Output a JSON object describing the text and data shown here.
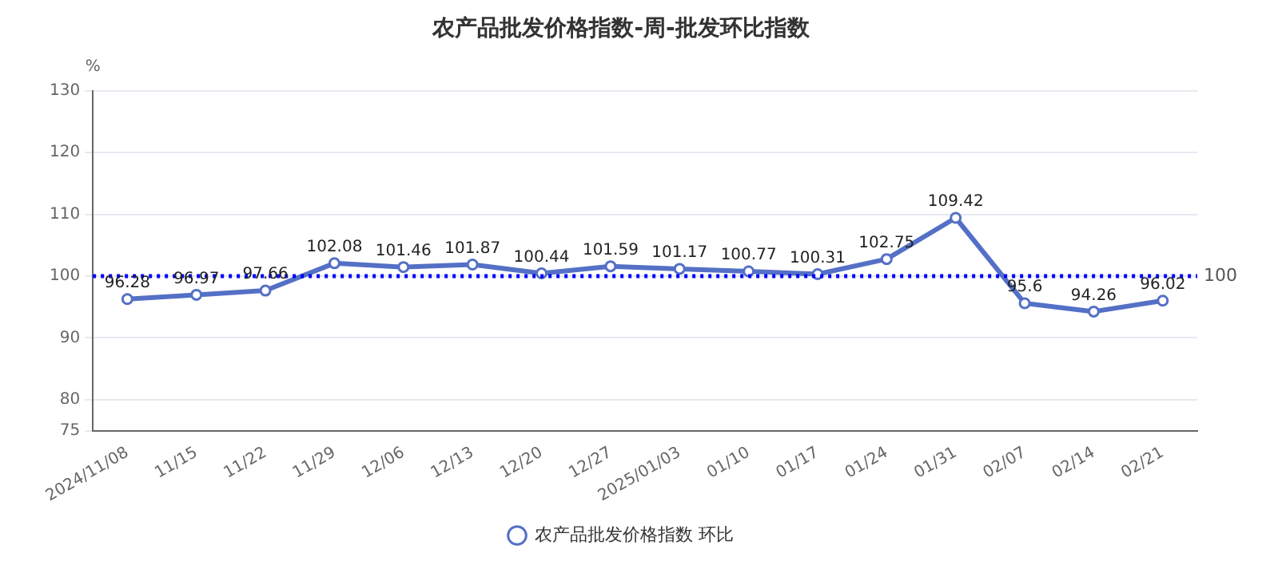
{
  "chart_data": {
    "type": "line",
    "title": "农产品批发价格指数-周-批发环比指数",
    "ylabel": "%",
    "categories": [
      "2024/11/08",
      "11/15",
      "11/22",
      "11/29",
      "12/06",
      "12/13",
      "12/20",
      "12/27",
      "2025/01/03",
      "01/10",
      "01/17",
      "01/24",
      "01/31",
      "02/07",
      "02/14",
      "02/21"
    ],
    "series": [
      {
        "name": "农产品批发价格指数 环比",
        "color": "#5470c6",
        "values": [
          96.28,
          96.97,
          97.66,
          102.08,
          101.46,
          101.87,
          100.44,
          101.59,
          101.17,
          100.77,
          100.31,
          102.75,
          109.42,
          95.6,
          94.26,
          96.02
        ]
      }
    ],
    "ylim": [
      75,
      130
    ],
    "yticks": [
      75,
      80,
      90,
      100,
      110,
      120,
      130
    ],
    "ref_lines": [
      {
        "axis": "y",
        "value": 100,
        "label": "100",
        "color": "#0000ff",
        "line_style": "dotted"
      }
    ],
    "data_labels": true,
    "grid": "y",
    "legend": "bottom",
    "marker": "circle",
    "line_style": "solid"
  }
}
